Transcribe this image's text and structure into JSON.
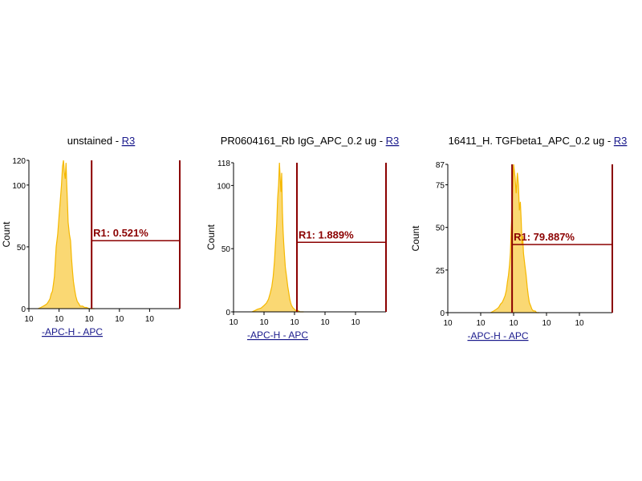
{
  "colors": {
    "histogram": "#f5b800",
    "gate": "#8b0000",
    "axis": "#000000",
    "title_link": "#1a1a8c"
  },
  "chart_data": [
    {
      "type": "area",
      "title": "unstained -",
      "title_link": "R3",
      "xlabel": "-APC-H - APC",
      "ylabel": "Count",
      "xscale": "log",
      "xlim": [
        1,
        100000
      ],
      "ylim": [
        0,
        120
      ],
      "ytick_labels": [
        "0",
        "50",
        "100",
        "120"
      ],
      "yticks": [
        0,
        50,
        100,
        120
      ],
      "xtick_labels": [
        "10",
        "10",
        "10",
        "10",
        "10"
      ],
      "gate": {
        "label": "R1: 0.521%",
        "x_start": 120,
        "x_end": 100000,
        "level": 55
      },
      "x": [
        2,
        2.5,
        3,
        3.5,
        4,
        4.5,
        5,
        5.5,
        6,
        6.5,
        7,
        7.5,
        8,
        9,
        10,
        11,
        12,
        13,
        14,
        15,
        16,
        17,
        18,
        19,
        20,
        22,
        24,
        26,
        28,
        30,
        33,
        36,
        40,
        45,
        50,
        60,
        70,
        80,
        100,
        150
      ],
      "y": [
        0,
        1,
        2,
        3,
        4,
        6,
        8,
        12,
        14,
        20,
        26,
        38,
        50,
        60,
        75,
        88,
        100,
        115,
        120,
        110,
        105,
        118,
        100,
        85,
        70,
        60,
        55,
        40,
        30,
        22,
        15,
        10,
        6,
        4,
        2,
        2,
        1,
        1,
        0,
        0
      ]
    },
    {
      "type": "area",
      "title": "PR0604161_Rb IgG_APC_0.2 ug -",
      "title_link": "R3",
      "xlabel": "-APC-H - APC",
      "ylabel": "Count",
      "xscale": "log",
      "xlim": [
        1,
        100000
      ],
      "ylim": [
        0,
        118
      ],
      "ytick_labels": [
        "0",
        "50",
        "100",
        "118"
      ],
      "yticks": [
        0,
        50,
        100,
        118
      ],
      "xtick_labels": [
        "10",
        "10",
        "10",
        "10",
        "10"
      ],
      "gate": {
        "label": "R1: 1.889%",
        "x_start": 120,
        "x_end": 100000,
        "level": 55
      },
      "x": [
        4,
        5,
        6,
        8,
        10,
        12,
        14,
        16,
        18,
        20,
        22,
        24,
        26,
        28,
        30,
        32,
        34,
        36,
        38,
        40,
        42,
        44,
        47,
        50,
        55,
        60,
        65,
        70,
        75,
        80,
        90,
        100,
        110,
        130,
        150,
        200
      ],
      "y": [
        0,
        1,
        2,
        3,
        5,
        7,
        10,
        15,
        20,
        28,
        40,
        55,
        70,
        90,
        100,
        118,
        105,
        95,
        110,
        80,
        65,
        55,
        45,
        35,
        28,
        20,
        15,
        10,
        7,
        5,
        3,
        2,
        1,
        1,
        0,
        0
      ]
    },
    {
      "type": "area",
      "title": "16411_H. TGFbeta1_APC_0.2 ug -",
      "title_link": "R3",
      "xlabel": "-APC-H - APC",
      "ylabel": "Count",
      "xscale": "log",
      "xlim": [
        1,
        100000
      ],
      "ylim": [
        0,
        87
      ],
      "ytick_labels": [
        "0",
        "25",
        "50",
        "75",
        "87"
      ],
      "yticks": [
        0,
        25,
        50,
        75,
        87
      ],
      "xtick_labels": [
        "10",
        "10",
        "10",
        "10",
        "10"
      ],
      "gate": {
        "label": "R1: 79.887%",
        "x_start": 90,
        "x_end": 100000,
        "level": 40
      },
      "x": [
        20,
        25,
        30,
        35,
        40,
        45,
        50,
        55,
        60,
        65,
        70,
        75,
        80,
        85,
        90,
        95,
        100,
        110,
        120,
        130,
        140,
        150,
        160,
        170,
        180,
        190,
        200,
        220,
        240,
        260,
        280,
        300,
        330,
        360,
        400,
        450,
        500,
        600
      ],
      "y": [
        0,
        1,
        2,
        3,
        5,
        6,
        8,
        10,
        13,
        18,
        22,
        28,
        35,
        50,
        60,
        75,
        87,
        80,
        70,
        82,
        75,
        60,
        65,
        55,
        40,
        45,
        35,
        28,
        22,
        15,
        10,
        6,
        4,
        2,
        1,
        1,
        0,
        0
      ]
    }
  ]
}
